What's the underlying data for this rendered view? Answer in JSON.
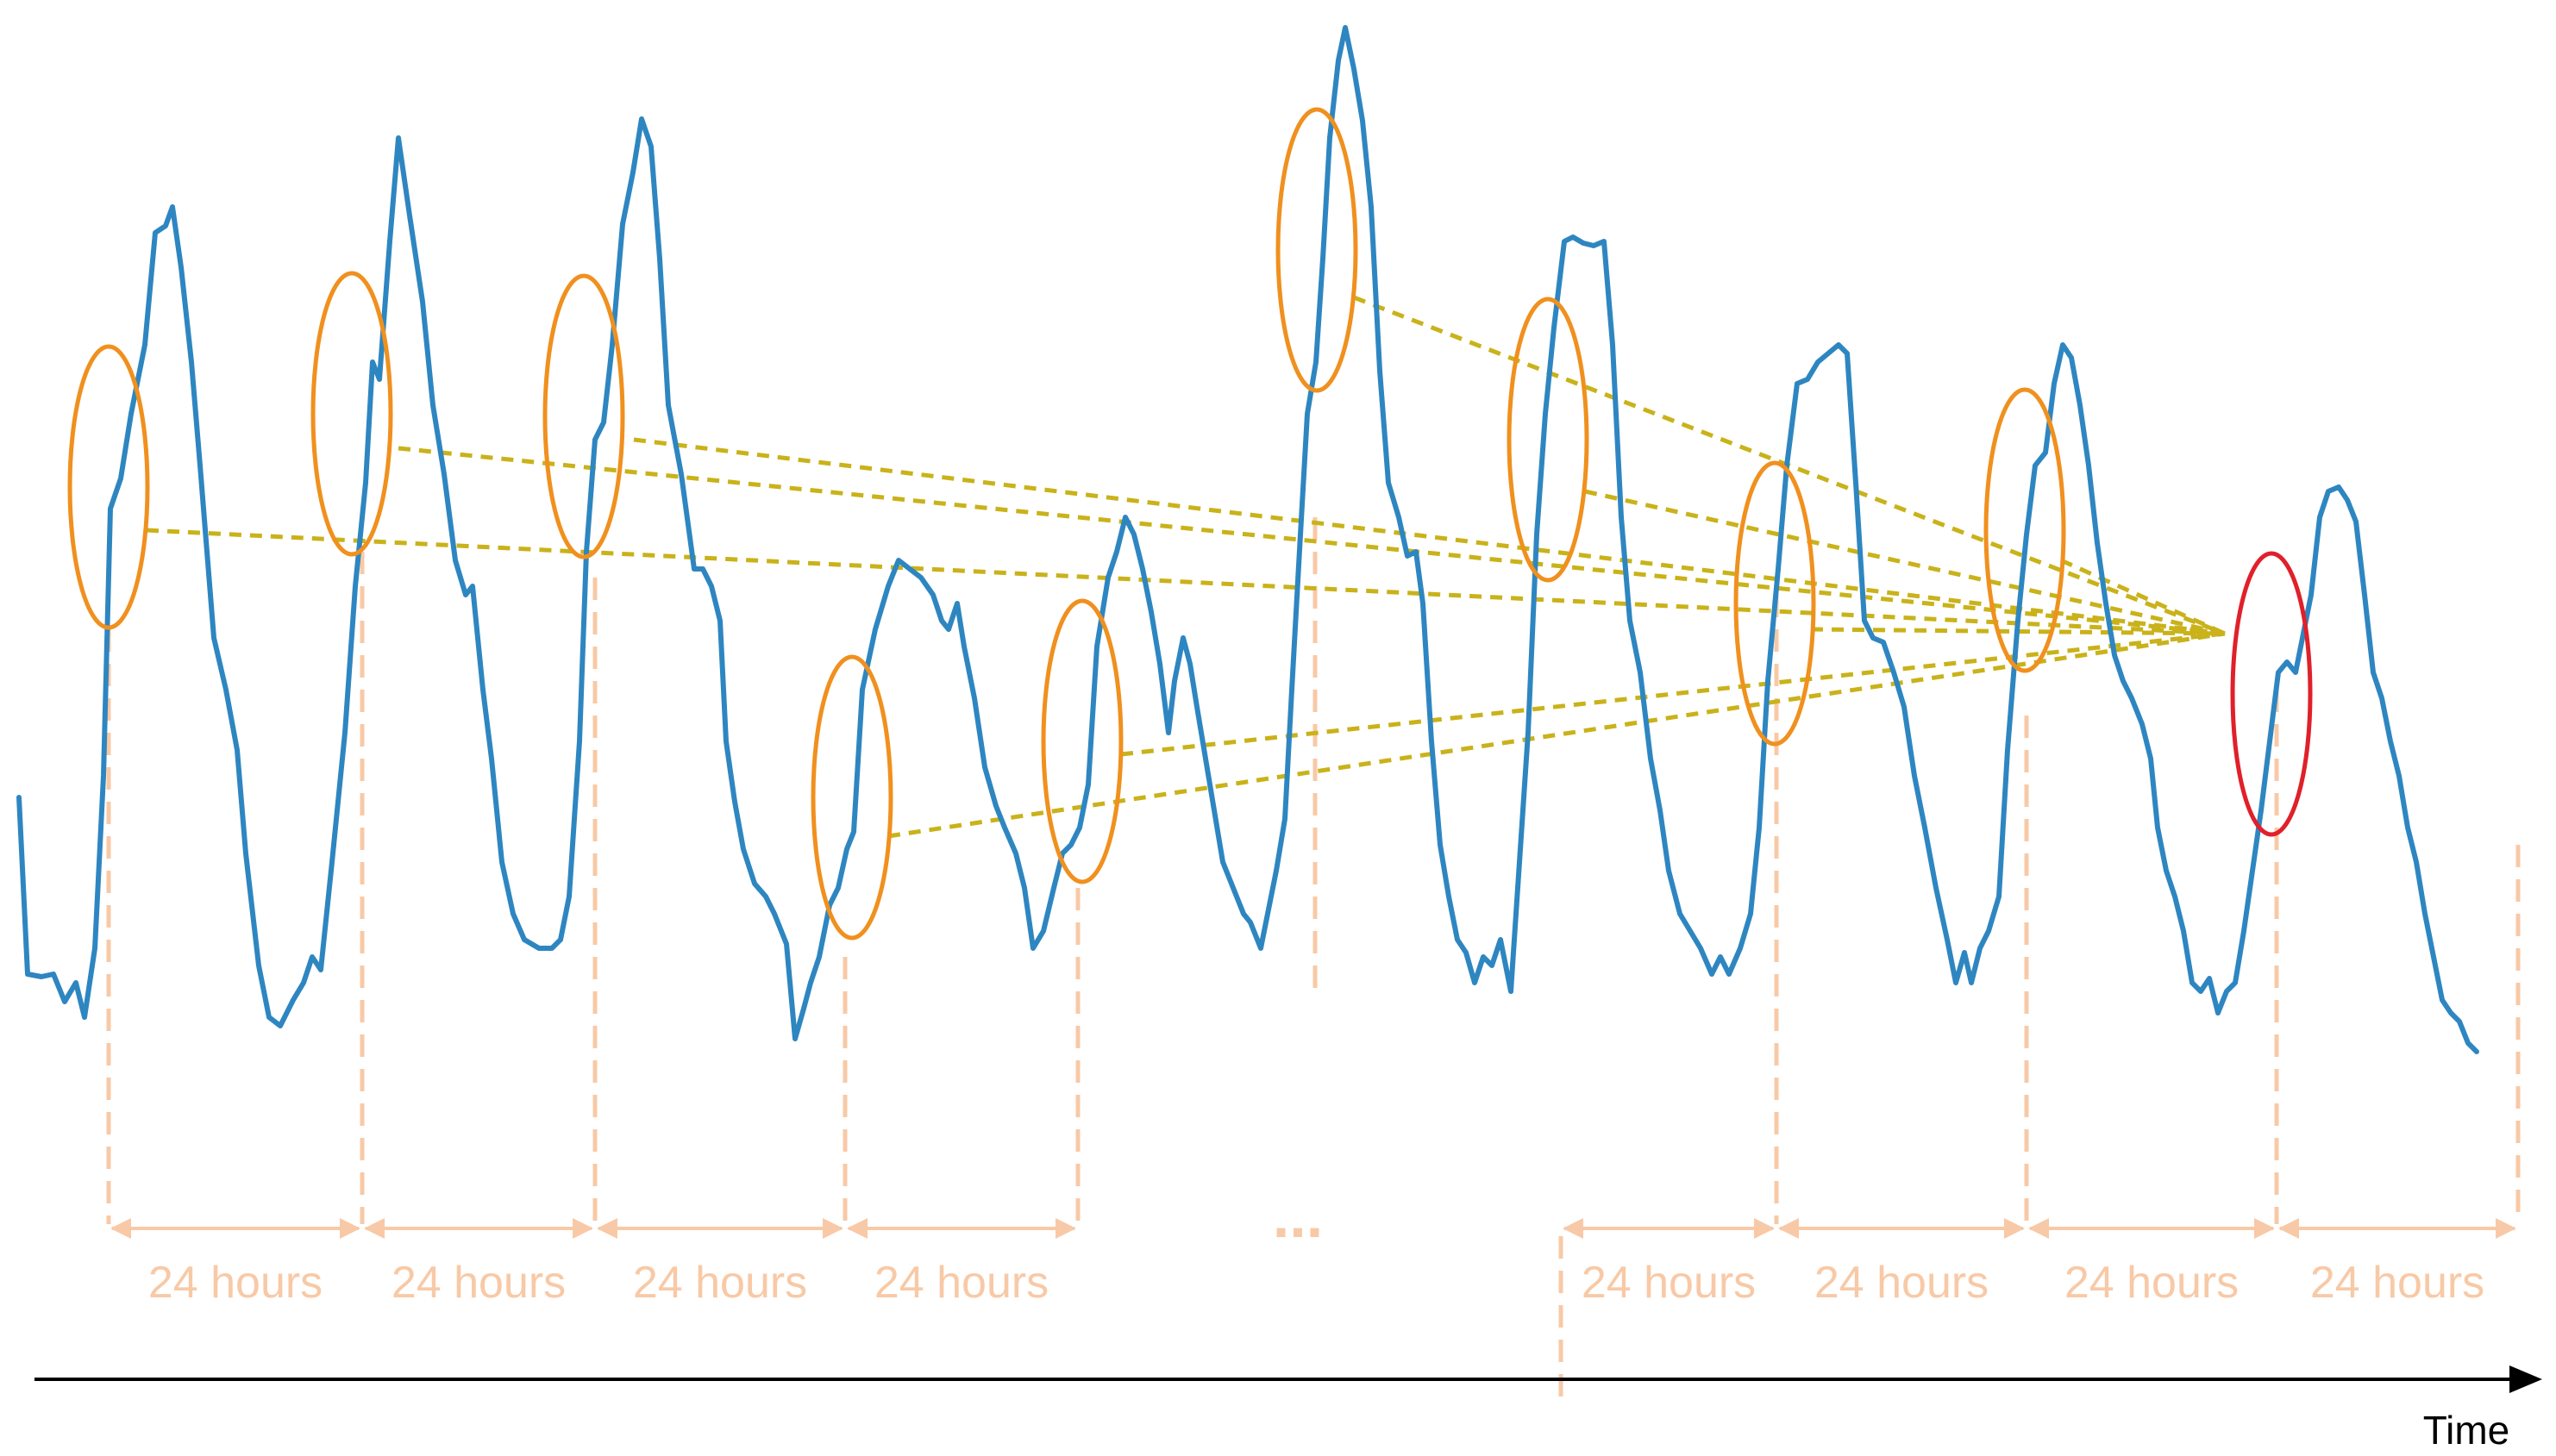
{
  "axis": {
    "label": "Time",
    "color": "#000000"
  },
  "periods": {
    "label": "24 hours",
    "ellipsis": "...",
    "color": "#f8c9a6",
    "items": [
      {
        "label": "24 hours"
      },
      {
        "label": "24 hours"
      },
      {
        "label": "24 hours"
      },
      {
        "label": "24 hours"
      },
      {
        "label": "24 hours"
      },
      {
        "label": "24 hours"
      },
      {
        "label": "24 hours"
      },
      {
        "label": "24 hours"
      }
    ]
  },
  "series": {
    "name": "",
    "color": "#2e86c1"
  },
  "highlights": {
    "history_color": "#f0901e",
    "target_color": "#e0202a",
    "link_color": "#c9b21a"
  }
}
